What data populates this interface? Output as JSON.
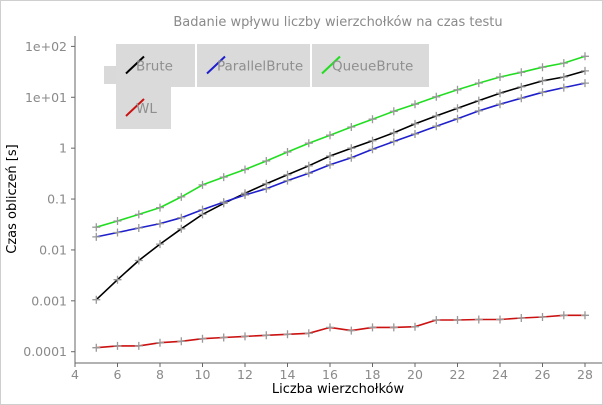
{
  "chart_data": {
    "type": "line",
    "title": "Badanie wpływu liczby wierzchołków na czas testu",
    "xlabel": "Liczba wierzchołków",
    "ylabel": "Czas obliczeń [s]",
    "x_scale": "linear",
    "y_scale": "log",
    "xlim": [
      4,
      28.8
    ],
    "ylim": [
      6e-05,
      160
    ],
    "x_ticks": [
      4,
      6,
      8,
      10,
      12,
      14,
      16,
      18,
      20,
      22,
      24,
      26,
      28
    ],
    "x_tick_labels": [
      "4",
      "6",
      "8",
      "10",
      "12",
      "14",
      "16",
      "18",
      "20",
      "22",
      "24",
      "26",
      "28"
    ],
    "y_ticks": [
      0.0001,
      0.001,
      0.01,
      0.1,
      1,
      10,
      100
    ],
    "y_tick_labels": [
      "0.0001",
      "0.001",
      "0.01",
      "0.1",
      "1",
      "1e+01",
      "1e+02"
    ],
    "grid": false,
    "legend_position": "top-left",
    "marker": "+",
    "marker_color": "#999999",
    "x": [
      5,
      6,
      7,
      8,
      9,
      10,
      11,
      12,
      13,
      14,
      15,
      16,
      17,
      18,
      19,
      20,
      21,
      22,
      23,
      24,
      25,
      26,
      27,
      28
    ],
    "series": [
      {
        "name": "Brute",
        "color": "#000000",
        "values": [
          0.00105,
          0.0026,
          0.0062,
          0.013,
          0.026,
          0.05,
          0.082,
          0.13,
          0.2,
          0.3,
          0.45,
          0.7,
          1.0,
          1.4,
          2.0,
          3.0,
          4.3,
          6.1,
          8.6,
          12,
          16,
          21,
          25,
          33
        ]
      },
      {
        "name": "ParallelBrute",
        "color": "#1f1fcc",
        "values": [
          0.018,
          0.022,
          0.027,
          0.033,
          0.043,
          0.062,
          0.087,
          0.12,
          0.16,
          0.23,
          0.32,
          0.47,
          0.65,
          0.95,
          1.35,
          1.9,
          2.7,
          3.8,
          5.4,
          7.3,
          9.6,
          12.5,
          15.5,
          19
        ]
      },
      {
        "name": "QueueBrute",
        "color": "#22dd22",
        "values": [
          0.028,
          0.037,
          0.05,
          0.068,
          0.11,
          0.19,
          0.27,
          0.38,
          0.56,
          0.84,
          1.25,
          1.8,
          2.6,
          3.7,
          5.3,
          7.3,
          10.2,
          14,
          19,
          25,
          31,
          39,
          47,
          64
        ]
      },
      {
        "name": "WL",
        "color": "#cc1111",
        "values": [
          0.00012,
          0.00013,
          0.00013,
          0.00015,
          0.00016,
          0.00018,
          0.00019,
          0.0002,
          0.00021,
          0.00022,
          0.00023,
          0.0003,
          0.00026,
          0.0003,
          0.0003,
          0.00031,
          0.00042,
          0.00042,
          0.00043,
          0.00043,
          0.00046,
          0.00048,
          0.00052,
          0.00052
        ]
      }
    ]
  }
}
